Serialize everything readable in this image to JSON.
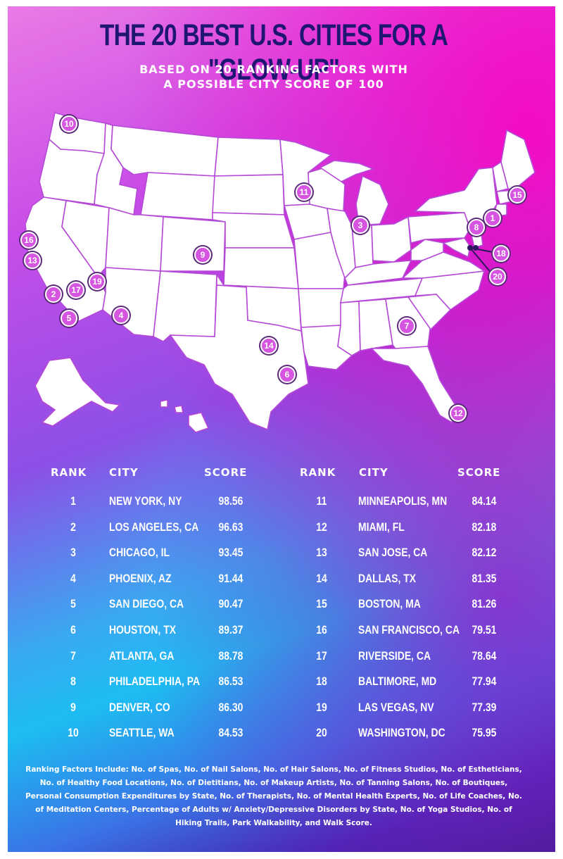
{
  "header": {
    "title": "THE 20 BEST U.S. CITIES FOR A \"GLOW-UP\"",
    "subtitle_line1": "BASED ON 20 RANKING FACTORS WITH",
    "subtitle_line2": "A POSSIBLE CITY SCORE OF 100"
  },
  "colors": {
    "title": "#1e1670",
    "marker": "#d655e0",
    "state_border": "#b44ad6"
  },
  "map": {
    "markers": [
      {
        "rank": "1"
      },
      {
        "rank": "2"
      },
      {
        "rank": "3"
      },
      {
        "rank": "4"
      },
      {
        "rank": "5"
      },
      {
        "rank": "6"
      },
      {
        "rank": "7"
      },
      {
        "rank": "8"
      },
      {
        "rank": "9"
      },
      {
        "rank": "10"
      },
      {
        "rank": "11"
      },
      {
        "rank": "12"
      },
      {
        "rank": "13"
      },
      {
        "rank": "14"
      },
      {
        "rank": "15"
      },
      {
        "rank": "16"
      },
      {
        "rank": "17"
      },
      {
        "rank": "18"
      },
      {
        "rank": "19"
      },
      {
        "rank": "20"
      }
    ]
  },
  "table": {
    "headers": {
      "rank": "RANK",
      "city": "CITY",
      "score": "SCORE"
    },
    "left": [
      {
        "rank": "1",
        "city": "NEW YORK, NY",
        "score": "98.56"
      },
      {
        "rank": "2",
        "city": "LOS ANGELES, CA",
        "score": "96.63"
      },
      {
        "rank": "3",
        "city": "CHICAGO, IL",
        "score": "93.45"
      },
      {
        "rank": "4",
        "city": "PHOENIX, AZ",
        "score": "91.44"
      },
      {
        "rank": "5",
        "city": "SAN DIEGO, CA",
        "score": "90.47"
      },
      {
        "rank": "6",
        "city": "HOUSTON, TX",
        "score": "89.37"
      },
      {
        "rank": "7",
        "city": "ATLANTA, GA",
        "score": "88.78"
      },
      {
        "rank": "8",
        "city": "PHILADELPHIA, PA",
        "score": "86.53"
      },
      {
        "rank": "9",
        "city": "DENVER, CO",
        "score": "86.30"
      },
      {
        "rank": "10",
        "city": "SEATTLE, WA",
        "score": "84.53"
      }
    ],
    "right": [
      {
        "rank": "11",
        "city": "MINNEAPOLIS, MN",
        "score": "84.14"
      },
      {
        "rank": "12",
        "city": "MIAMI, FL",
        "score": "82.18"
      },
      {
        "rank": "13",
        "city": "SAN JOSE, CA",
        "score": "82.12"
      },
      {
        "rank": "14",
        "city": "DALLAS, TX",
        "score": "81.35"
      },
      {
        "rank": "15",
        "city": "BOSTON, MA",
        "score": "81.26"
      },
      {
        "rank": "16",
        "city": "SAN FRANCISCO, CA",
        "score": "79.51"
      },
      {
        "rank": "17",
        "city": "RIVERSIDE, CA",
        "score": "78.64"
      },
      {
        "rank": "18",
        "city": "BALTIMORE, MD",
        "score": "77.94"
      },
      {
        "rank": "19",
        "city": "LAS VEGAS, NV",
        "score": "77.39"
      },
      {
        "rank": "20",
        "city": "WASHINGTON, DC",
        "score": "75.95"
      }
    ]
  },
  "footnote": "Ranking Factors Include: No. of Spas, No. of Nail Salons, No. of Hair Salons, No. of Fitness Studios, No. of Estheticians, No. of Healthy Food Locations, No. of Dietitians, No. of Makeup Artists, No. of Tanning Salons, No. of Boutiques, Personal Consumption Expenditures by State, No. of Therapists, No. of Mental Health Experts, No. of Life Coaches, No. of Meditation Centers, Percentage of Adults w/ Anxiety/Depressive Disorders by State, No. of Yoga Studios, No. of Hiking Trails, Park Walkability, and Walk Score."
}
